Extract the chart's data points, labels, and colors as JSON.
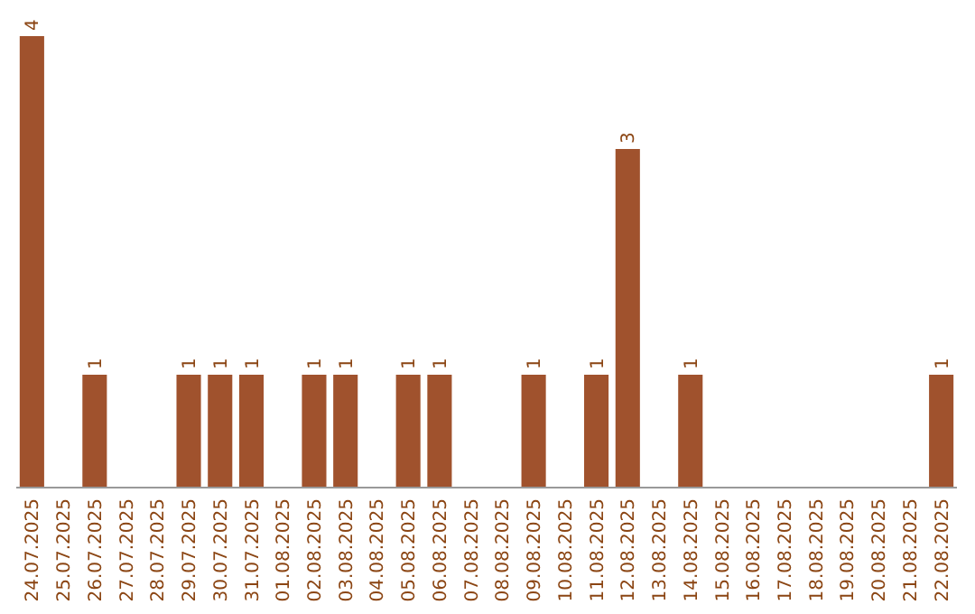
{
  "chart_data": {
    "type": "bar",
    "categories": [
      "24.07.2025",
      "25.07.2025",
      "26.07.2025",
      "27.07.2025",
      "28.07.2025",
      "29.07.2025",
      "30.07.2025",
      "31.07.2025",
      "01.08.2025",
      "02.08.2025",
      "03.08.2025",
      "04.08.2025",
      "05.08.2025",
      "06.08.2025",
      "07.08.2025",
      "08.08.2025",
      "09.08.2025",
      "10.08.2025",
      "11.08.2025",
      "12.08.2025",
      "13.08.2025",
      "14.08.2025",
      "15.08.2025",
      "16.08.2025",
      "17.08.2025",
      "18.08.2025",
      "19.08.2025",
      "20.08.2025",
      "21.08.2025",
      "22.08.2025"
    ],
    "values": [
      4,
      0,
      1,
      0,
      0,
      1,
      1,
      1,
      0,
      1,
      1,
      0,
      1,
      1,
      0,
      0,
      1,
      0,
      1,
      3,
      0,
      1,
      0,
      0,
      0,
      0,
      0,
      0,
      0,
      1
    ],
    "value_labels": [
      "4",
      null,
      "1",
      null,
      null,
      "1",
      "1",
      "1",
      null,
      "1",
      "1",
      null,
      "1",
      "1",
      null,
      null,
      "1",
      null,
      "1",
      "3",
      null,
      "1",
      null,
      null,
      null,
      null,
      null,
      null,
      null,
      "1"
    ],
    "color": "#a0522d"
  }
}
